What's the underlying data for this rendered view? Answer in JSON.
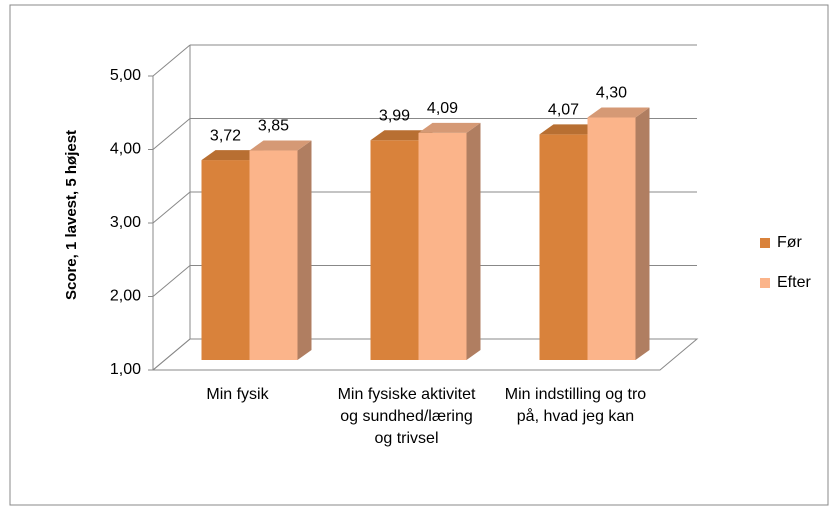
{
  "chart_data": {
    "type": "bar3d",
    "y_axis_label": "Score, 1 lavest, 5 højest",
    "categories": [
      "Min fysik",
      "Min fysiske aktivitet og sundhed/læring og trivsel",
      "Min indstilling og tro på, hvad jeg kan"
    ],
    "series": [
      {
        "name": "Før",
        "color": "#d9823b",
        "values": [
          3.72,
          3.99,
          4.07
        ],
        "value_labels": [
          "3,72",
          "3,99",
          "4,07"
        ]
      },
      {
        "name": "Efter",
        "color": "#fbb48a",
        "values": [
          3.85,
          4.09,
          4.3
        ],
        "value_labels": [
          "3,85",
          "4,09",
          "4,30"
        ]
      }
    ],
    "ylim": [
      1,
      5
    ],
    "yticks": [
      {
        "value": 1,
        "label": "1,00"
      },
      {
        "value": 2,
        "label": "2,00"
      },
      {
        "value": 3,
        "label": "3,00"
      },
      {
        "value": 4,
        "label": "4,00"
      },
      {
        "value": 5,
        "label": "5,00"
      }
    ],
    "grid": true,
    "legend": "right"
  }
}
